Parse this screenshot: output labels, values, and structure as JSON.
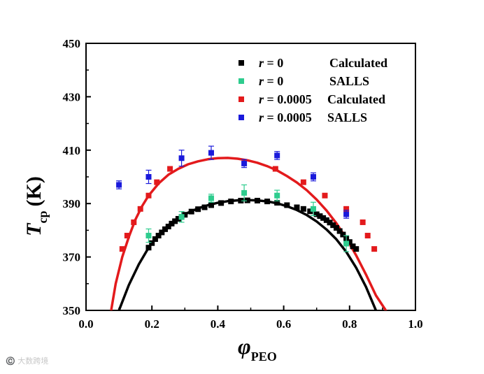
{
  "chart_data": {
    "type": "scatter",
    "xlabel": "φ",
    "xlabel_sub": "PEO",
    "ylabel": "T",
    "ylabel_sub": "cp",
    "ylabel_unit": "(K)",
    "xlim": [
      0.0,
      1.0
    ],
    "ylim": [
      350,
      450
    ],
    "x_ticks": [
      "0.0",
      "0.2",
      "0.4",
      "0.6",
      "0.8",
      "1.0"
    ],
    "y_ticks": [
      "350",
      "370",
      "390",
      "410",
      "430",
      "450"
    ],
    "legend_position": "top-right",
    "series": [
      {
        "name": "r = 0 Calculated",
        "legend_r": "r",
        "legend_value": " = 0",
        "legend_label": "Calculated",
        "color": "#000000",
        "marker": "square",
        "x": [
          0.19,
          0.2,
          0.21,
          0.22,
          0.23,
          0.24,
          0.25,
          0.26,
          0.27,
          0.28,
          0.29,
          0.3,
          0.32,
          0.34,
          0.36,
          0.38,
          0.41,
          0.44,
          0.47,
          0.49,
          0.52,
          0.55,
          0.58,
          0.61,
          0.64,
          0.66,
          0.68,
          0.7,
          0.71,
          0.72,
          0.73,
          0.74,
          0.75,
          0.76,
          0.77,
          0.78,
          0.79,
          0.8,
          0.81,
          0.82
        ],
        "y": [
          373.5,
          375.2,
          376.7,
          378.0,
          379.2,
          380.4,
          381.4,
          382.5,
          383.4,
          384.3,
          385.0,
          385.8,
          387.0,
          387.9,
          388.6,
          389.4,
          390.2,
          390.8,
          391.1,
          391.2,
          391.1,
          390.8,
          390.3,
          389.4,
          388.6,
          388.0,
          387.1,
          386.0,
          385.3,
          384.6,
          383.8,
          382.9,
          381.9,
          380.9,
          379.7,
          378.4,
          377.0,
          375.6,
          374.0,
          373.0
        ]
      },
      {
        "name": "r = 0 SALLS",
        "legend_r": "r",
        "legend_value": " = 0",
        "legend_label": "SALLS",
        "color": "#2ecc8e",
        "marker": "square",
        "x": [
          0.19,
          0.29,
          0.38,
          0.48,
          0.58,
          0.69,
          0.79
        ],
        "y": [
          378,
          385,
          392,
          394,
          393,
          388,
          375
        ],
        "err": [
          2.5,
          2.0,
          1.5,
          3.0,
          2.0,
          2.5,
          3.0
        ]
      },
      {
        "name": "r = 0.0005 Calculated",
        "legend_r": "r",
        "legend_value": " = 0.0005",
        "legend_label": "Calculated",
        "color": "#e31a1c",
        "marker": "square",
        "x": [
          0.11,
          0.125,
          0.145,
          0.165,
          0.19,
          0.215,
          0.255,
          0.575,
          0.66,
          0.725,
          0.79,
          0.84,
          0.855,
          0.875
        ],
        "y": [
          373,
          378,
          383,
          388,
          393,
          398,
          403,
          403,
          398,
          393,
          388,
          383,
          378,
          373
        ]
      },
      {
        "name": "r = 0.0005 SALLS",
        "legend_r": "r",
        "legend_value": " = 0.0005",
        "legend_label": "SALLS",
        "color": "#1a1adb",
        "marker": "square",
        "x": [
          0.1,
          0.19,
          0.29,
          0.38,
          0.48,
          0.58,
          0.69,
          0.79
        ],
        "y": [
          397,
          400,
          407,
          409,
          405,
          408,
          400,
          386
        ],
        "err": [
          1.5,
          2.5,
          3.0,
          2.5,
          1.5,
          1.5,
          1.5,
          1.5
        ]
      }
    ],
    "curves": [
      {
        "name": "r = 0 fit",
        "color": "#000000",
        "x": [
          0.1,
          0.13,
          0.16,
          0.19,
          0.22,
          0.25,
          0.28,
          0.31,
          0.34,
          0.37,
          0.4,
          0.43,
          0.46,
          0.49,
          0.52,
          0.55,
          0.58,
          0.61,
          0.64,
          0.67,
          0.7,
          0.73,
          0.76,
          0.79,
          0.82,
          0.85,
          0.88,
          0.91,
          0.925
        ],
        "y": [
          350.0,
          359.5,
          367.2,
          373.5,
          378.3,
          381.9,
          384.5,
          386.6,
          388.2,
          389.4,
          390.3,
          390.9,
          391.2,
          391.3,
          391.2,
          390.8,
          390.1,
          389.0,
          387.6,
          385.7,
          383.3,
          380.3,
          376.6,
          371.9,
          366.0,
          358.8,
          350.0,
          343.0,
          340.0
        ]
      },
      {
        "name": "r = 0.0005 fit",
        "color": "#e31a1c",
        "x": [
          0.075,
          0.09,
          0.11,
          0.13,
          0.15,
          0.17,
          0.19,
          0.22,
          0.25,
          0.28,
          0.31,
          0.34,
          0.37,
          0.4,
          0.43,
          0.46,
          0.49,
          0.52,
          0.55,
          0.58,
          0.61,
          0.64,
          0.67,
          0.7,
          0.73,
          0.76,
          0.79,
          0.82,
          0.85,
          0.88,
          0.91,
          0.94,
          0.965
        ],
        "y": [
          349.0,
          360.0,
          370.0,
          377.5,
          384.0,
          389.0,
          393.0,
          397.5,
          400.8,
          403.0,
          404.7,
          405.8,
          406.6,
          407.0,
          407.1,
          406.8,
          406.2,
          405.3,
          404.0,
          402.4,
          400.3,
          397.9,
          395.0,
          391.5,
          387.4,
          382.6,
          377.0,
          370.6,
          363.4,
          355.6,
          350.0,
          345.0,
          341.0
        ]
      }
    ]
  },
  "watermark": "©️ 大数跨境"
}
